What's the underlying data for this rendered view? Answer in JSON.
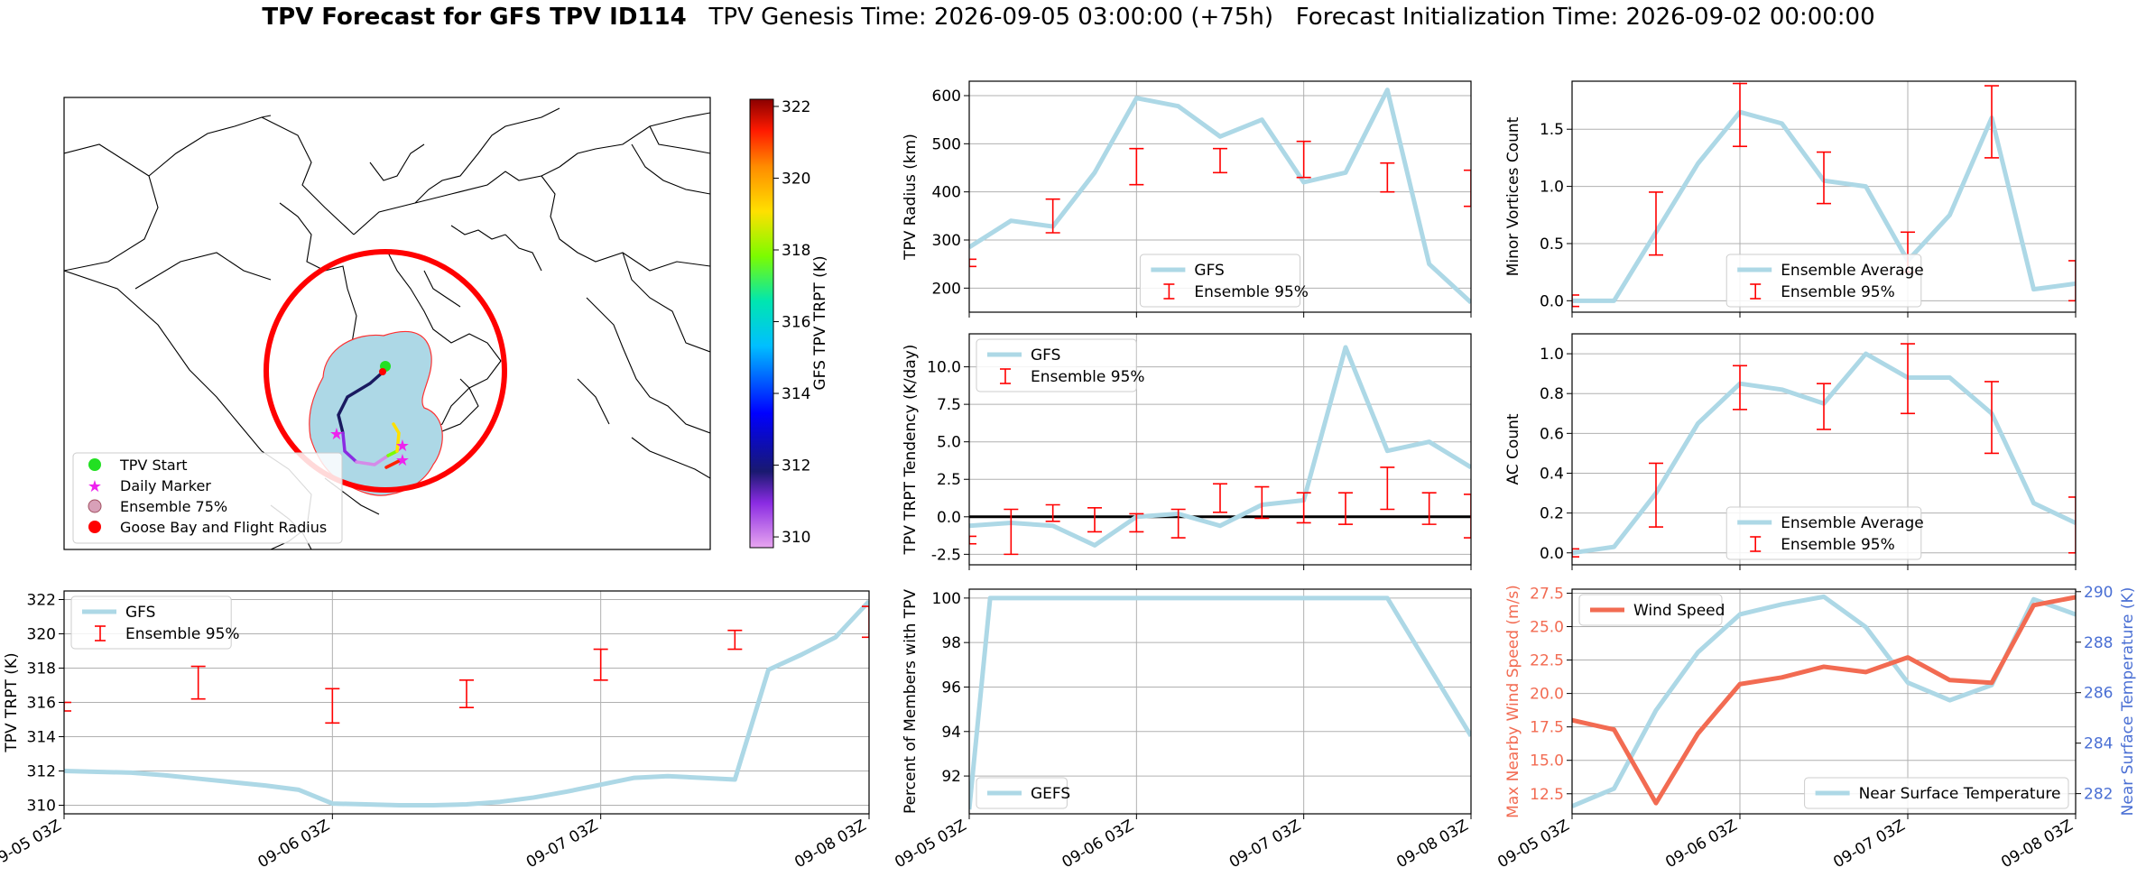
{
  "title": {
    "bold": "TPV Forecast for GFS TPV ID114",
    "rest": "   TPV Genesis Time: 2026-09-05 03:00:00 (+75h)   Forecast Initialization Time: 2026-09-02 00:00:00"
  },
  "colors": {
    "gfs": "#add8e6",
    "ensemble_err": "#ff0000",
    "wind": "#f26b52",
    "temp_axis": "#4a6fd4",
    "start": "#22e022",
    "daily_marker": "#ee22ee",
    "goose_bay": "#ff0000",
    "ensemble_fill": "#add8e6"
  },
  "x_tick_labels": [
    "09-05 03Z",
    "09-06 03Z",
    "09-07 03Z",
    "09-08 03Z"
  ],
  "map": {
    "colorbar_label": "GFS TPV TRPT (K)",
    "colorbar_ticks": [
      "322",
      "320",
      "318",
      "316",
      "314",
      "312",
      "310"
    ],
    "colorbar_range": [
      309.7,
      322.2
    ],
    "legend": [
      "TPV Start",
      "Daily Marker",
      "Ensemble 75%",
      "Goose Bay and Flight Radius"
    ]
  },
  "chart_data": [
    {
      "id": "trpt",
      "type": "line",
      "ylabel": "TPV TRPT (K)",
      "ylim": [
        309.5,
        322.5
      ],
      "yticks": [
        310,
        312,
        314,
        316,
        318,
        320,
        322
      ],
      "legend": [
        "GFS",
        "Ensemble 95%"
      ],
      "legend_position": "upper-left",
      "gfs_x": [
        0,
        0.125,
        0.25,
        0.375,
        0.5,
        0.625,
        0.75,
        0.875,
        1,
        1.125,
        1.25,
        1.375,
        1.5,
        1.625,
        1.75,
        1.875,
        2,
        2.125,
        2.25,
        2.375,
        2.5,
        2.625,
        2.75,
        2.875,
        3
      ],
      "gfs_y": [
        312.0,
        311.95,
        311.9,
        311.75,
        311.55,
        311.35,
        311.15,
        310.9,
        310.1,
        310.05,
        310.0,
        310.0,
        310.05,
        310.2,
        310.45,
        310.8,
        311.2,
        311.6,
        311.7,
        311.6,
        311.5,
        317.9,
        318.8,
        319.8,
        321.9
      ],
      "ens_x": [
        0.0,
        0.5,
        1.0,
        1.5,
        2.0,
        2.5,
        3.0
      ],
      "ens_low": [
        315.5,
        316.2,
        314.8,
        315.7,
        317.3,
        319.1,
        319.8
      ],
      "ens_high": [
        316.0,
        318.1,
        316.8,
        317.3,
        319.1,
        320.2,
        321.6
      ]
    },
    {
      "id": "radius",
      "type": "line",
      "ylabel": "TPV Radius (km)",
      "ylim": [
        150,
        630
      ],
      "yticks": [
        200,
        300,
        400,
        500,
        600
      ],
      "legend": [
        "GFS",
        "Ensemble 95%"
      ],
      "legend_position": "lower-center",
      "gfs_x": [
        0,
        0.25,
        0.5,
        0.75,
        1,
        1.25,
        1.5,
        1.75,
        2,
        2.25,
        2.5,
        2.75,
        3
      ],
      "gfs_y": [
        285,
        340,
        328,
        440,
        595,
        578,
        515,
        550,
        420,
        440,
        612,
        250,
        170
      ],
      "ens_x": [
        0,
        0.5,
        1.0,
        1.5,
        2.0,
        2.5,
        3.0
      ],
      "ens_low": [
        245,
        315,
        415,
        440,
        430,
        400,
        370
      ],
      "ens_high": [
        260,
        385,
        490,
        490,
        505,
        460,
        445
      ]
    },
    {
      "id": "minor_vortices",
      "type": "line",
      "ylabel": "Minor Vortices Count",
      "ylim": [
        -0.1,
        1.92
      ],
      "yticks": [
        0.0,
        0.5,
        1.0,
        1.5
      ],
      "legend": [
        "Ensemble Average",
        "Ensemble 95%"
      ],
      "legend_position": "lower-center",
      "gfs_x": [
        0,
        0.25,
        0.5,
        0.75,
        1,
        1.25,
        1.5,
        1.75,
        2,
        2.25,
        2.5,
        2.75,
        3
      ],
      "gfs_y": [
        0.0,
        0.0,
        0.6,
        1.2,
        1.65,
        1.55,
        1.05,
        1.0,
        0.35,
        0.75,
        1.6,
        0.1,
        0.15
      ],
      "ens_x": [
        0,
        0.5,
        1.0,
        1.5,
        2.0,
        2.5,
        3.0
      ],
      "ens_low": [
        -0.05,
        0.4,
        1.35,
        0.85,
        0.25,
        1.25,
        0.0
      ],
      "ens_high": [
        0.05,
        0.95,
        1.9,
        1.3,
        0.6,
        1.88,
        0.35
      ]
    },
    {
      "id": "trpt_tendency",
      "type": "line",
      "ylabel": "TPV TRPT Tendency (K/day)",
      "ylim": [
        -3.2,
        12.2
      ],
      "yticks": [
        -2.5,
        0.0,
        2.5,
        5.0,
        7.5,
        10.0
      ],
      "zero_line": true,
      "legend": [
        "GFS",
        "Ensemble 95%"
      ],
      "legend_position": "upper-left",
      "gfs_x": [
        0,
        0.25,
        0.5,
        0.75,
        1,
        1.25,
        1.5,
        1.75,
        2,
        2.25,
        2.5,
        2.75,
        3
      ],
      "gfs_y": [
        -0.6,
        -0.4,
        -0.6,
        -1.9,
        0.0,
        0.2,
        -0.6,
        0.8,
        1.1,
        11.3,
        4.4,
        5.0,
        3.3
      ],
      "ens_x": [
        0,
        0.25,
        0.5,
        0.75,
        1.0,
        1.25,
        1.5,
        1.75,
        2.0,
        2.25,
        2.5,
        2.75,
        3.0
      ],
      "ens_low": [
        -1.8,
        -2.5,
        -0.3,
        -1.0,
        -1.0,
        -1.4,
        0.3,
        -0.1,
        -0.4,
        -0.5,
        0.5,
        -0.5,
        -1.4
      ],
      "ens_high": [
        -1.3,
        0.5,
        0.8,
        0.6,
        0.2,
        0.5,
        2.2,
        2.0,
        1.6,
        1.6,
        3.3,
        1.6,
        1.5
      ]
    },
    {
      "id": "ac_count",
      "type": "line",
      "ylabel": "AC Count",
      "ylim": [
        -0.06,
        1.1
      ],
      "yticks": [
        0.0,
        0.2,
        0.4,
        0.6,
        0.8,
        1.0
      ],
      "legend": [
        "Ensemble Average",
        "Ensemble 95%"
      ],
      "legend_position": "lower-center",
      "gfs_x": [
        0,
        0.25,
        0.5,
        0.75,
        1,
        1.25,
        1.5,
        1.75,
        2,
        2.25,
        2.5,
        2.75,
        3
      ],
      "gfs_y": [
        0.0,
        0.03,
        0.3,
        0.65,
        0.85,
        0.82,
        0.75,
        1.0,
        0.88,
        0.88,
        0.7,
        0.25,
        0.15
      ],
      "ens_x": [
        0,
        0.5,
        1.0,
        1.5,
        2.0,
        2.5,
        3.0
      ],
      "ens_low": [
        -0.02,
        0.13,
        0.72,
        0.62,
        0.7,
        0.5,
        0.0
      ],
      "ens_high": [
        0.02,
        0.45,
        0.94,
        0.85,
        1.05,
        0.86,
        0.28
      ]
    },
    {
      "id": "percent_members",
      "type": "line",
      "ylabel": "Percent of Members with TPV",
      "ylim": [
        90.3,
        100.4
      ],
      "yticks": [
        92,
        94,
        96,
        98,
        100
      ],
      "legend": [
        "GEFS"
      ],
      "legend_position": "lower-left",
      "gfs_x": [
        0,
        0.125,
        0.25,
        2.5,
        3
      ],
      "gfs_y": [
        90.5,
        100,
        100,
        100,
        93.8
      ]
    },
    {
      "id": "wind_temp",
      "type": "line",
      "ylabel": "Max Nearby Wind Speed (m/s)",
      "ylim": [
        11.0,
        27.8
      ],
      "yticks": [
        12.5,
        15.0,
        17.5,
        20.0,
        22.5,
        25.0,
        27.5
      ],
      "ylabel_right": "Near Surface Temperature (K)",
      "ylim_right": [
        281.2,
        290.1
      ],
      "yticks_right": [
        282,
        284,
        286,
        288,
        290
      ],
      "legend": [
        "Wind Speed"
      ],
      "legend_position": "upper-left",
      "legend_right": [
        "Near Surface Temperature"
      ],
      "legend_right_position": "lower-right",
      "wind_x": [
        0,
        0.25,
        0.5,
        0.75,
        1,
        1.25,
        1.5,
        1.75,
        2,
        2.25,
        2.5,
        2.75,
        3
      ],
      "wind_y": [
        18.0,
        17.3,
        11.8,
        17.0,
        20.7,
        21.2,
        22.0,
        21.6,
        22.7,
        21.0,
        20.8,
        26.6,
        27.2
      ],
      "temp_x": [
        0,
        0.25,
        0.5,
        0.75,
        1,
        1.25,
        1.5,
        1.75,
        2,
        2.25,
        2.5,
        2.75,
        3
      ],
      "temp_y": [
        281.5,
        282.2,
        285.3,
        287.6,
        289.1,
        289.5,
        289.8,
        288.6,
        286.4,
        285.7,
        286.3,
        289.7,
        289.1
      ]
    }
  ]
}
